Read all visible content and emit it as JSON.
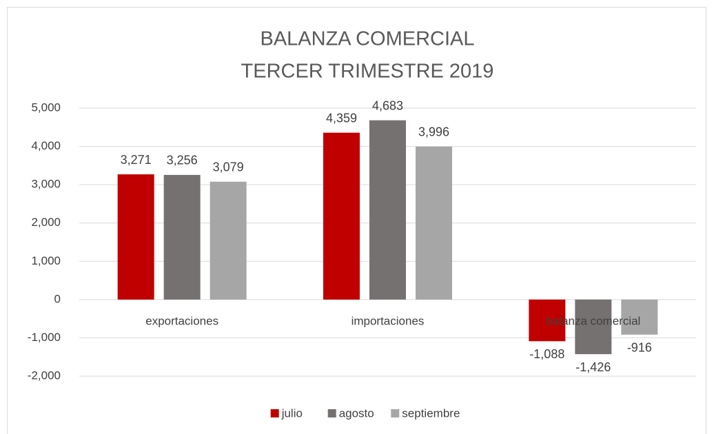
{
  "chart_data": {
    "type": "bar",
    "title": "BALANZA COMERCIAL",
    "subtitle": "TERCER TRIMESTRE 2019",
    "categories": [
      "exportaciones",
      "importaciones",
      "balanza comercial"
    ],
    "series": [
      {
        "name": "julio",
        "color": "#c00000",
        "values": [
          3271,
          4359,
          -1088
        ],
        "value_labels": [
          "3,271",
          "4,359",
          "-1,088"
        ]
      },
      {
        "name": "agosto",
        "color": "#767171",
        "values": [
          3256,
          4683,
          -1426
        ],
        "value_labels": [
          "3,256",
          "4,683",
          "-1,426"
        ]
      },
      {
        "name": "septiembre",
        "color": "#a6a6a6",
        "values": [
          3079,
          3996,
          -916
        ],
        "value_labels": [
          "3,079",
          "3,996",
          "-916"
        ]
      }
    ],
    "ylim": [
      -2000,
      5000
    ],
    "yticks": [
      {
        "value": -2000,
        "label": "-2,000"
      },
      {
        "value": -1000,
        "label": "-1,000"
      },
      0,
      {
        "value": 1000,
        "label": "1,000"
      },
      {
        "value": 2000,
        "label": "2,000"
      },
      {
        "value": 3000,
        "label": "3,000"
      },
      {
        "value": 4000,
        "label": "4,000"
      },
      {
        "value": 5000,
        "label": "5,000"
      }
    ],
    "grid": true,
    "legend": "bottom"
  }
}
